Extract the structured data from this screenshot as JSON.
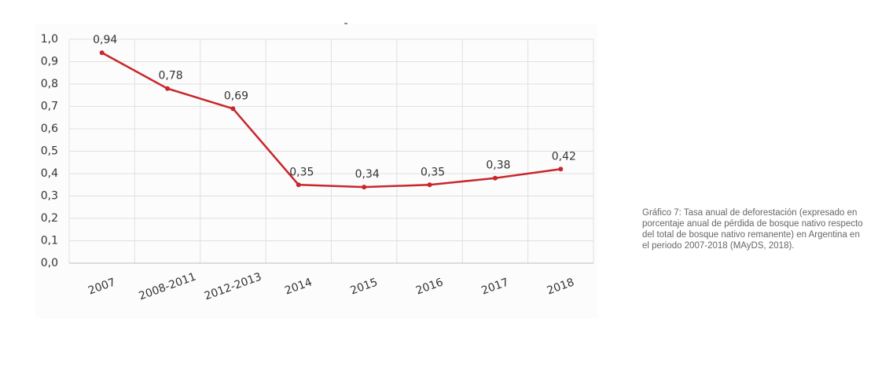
{
  "chart_data": {
    "type": "line",
    "title": "-",
    "categories": [
      "2007",
      "2008-2011",
      "2012-2013",
      "2014",
      "2015",
      "2016",
      "2017",
      "2018"
    ],
    "series": [
      {
        "name": "Tasa anual de deforestación",
        "color": "#c8262b",
        "values": [
          0.94,
          0.78,
          0.69,
          0.35,
          0.34,
          0.35,
          0.38,
          0.42
        ],
        "value_labels": [
          "0,94",
          "0,78",
          "0,69",
          "0,35",
          "0,34",
          "0,35",
          "0,38",
          "0,42"
        ]
      }
    ],
    "ylim": [
      0,
      1
    ],
    "yticks": [
      {
        "value": 0,
        "label": "0,0"
      },
      {
        "value": 0.1,
        "label": "0,1"
      },
      {
        "value": 0.2,
        "label": "0,2"
      },
      {
        "value": 0.3,
        "label": "0,3"
      },
      {
        "value": 0.4,
        "label": "0,4"
      },
      {
        "value": 0.5,
        "label": "0,5"
      },
      {
        "value": 0.6,
        "label": "0,6"
      },
      {
        "value": 0.7,
        "label": "0,7"
      },
      {
        "value": 0.8,
        "label": "0,8"
      },
      {
        "value": 0.9,
        "label": "0,9"
      },
      {
        "value": 1,
        "label": "1,0"
      }
    ],
    "grid": true
  },
  "caption": "Gráfico 7: Tasa anual de deforestación (expresado en porcentaje anual de pérdida de bosque nativo respecto del total de bosque nativo remanente) en Argentina en el periodo 2007-2018 (MAyDS, 2018)."
}
